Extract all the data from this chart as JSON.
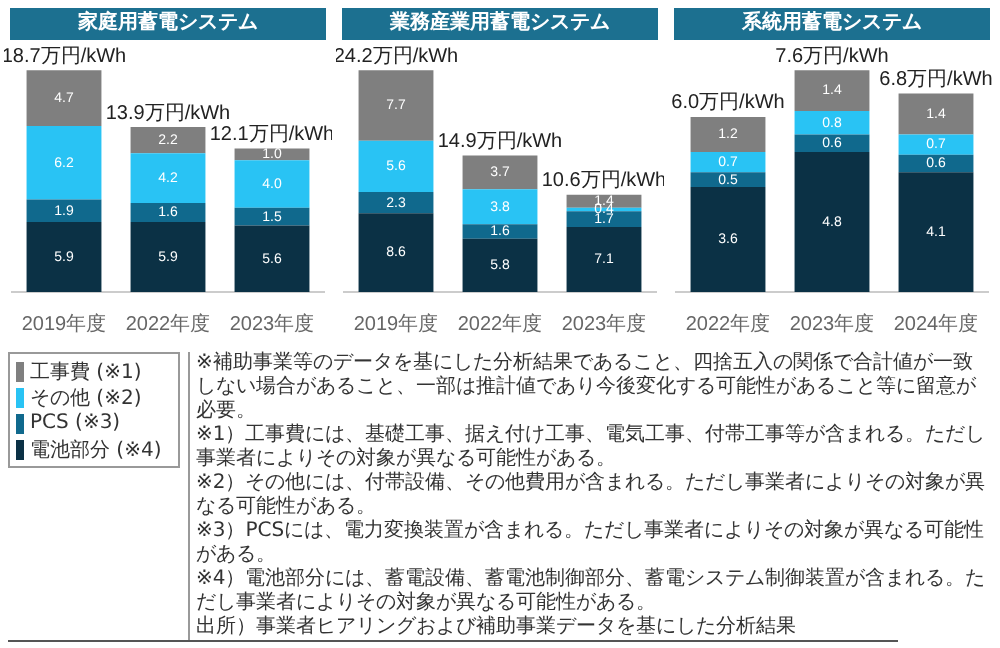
{
  "chart_data": [
    {
      "type": "bar",
      "title": "家庭用蓄電システム",
      "categories": [
        "2019年度",
        "2022年度",
        "2023年度"
      ],
      "stacked": true,
      "data_labels": true,
      "tick_labels": "x",
      "legend": "bottom left",
      "totals": [
        "18.7万円/kWh",
        "13.9万円/kWh",
        "12.1万円/kWh"
      ],
      "series": [
        {
          "name": "電池部分 (※4)",
          "color": "#0b3145",
          "values": [
            5.9,
            5.9,
            5.6
          ]
        },
        {
          "name": "PCS (※3)",
          "color": "#10698d",
          "values": [
            1.9,
            1.6,
            1.5
          ]
        },
        {
          "name": "その他 (※2)",
          "color": "#29c3f4",
          "values": [
            6.2,
            4.2,
            4.0
          ],
          "value_labels": [
            "6.2",
            "4.2",
            "4.0"
          ]
        },
        {
          "name": "工事費 (※1)",
          "color": "#7f7f7f",
          "values": [
            4.7,
            2.2,
            1.0
          ],
          "value_labels": [
            "4.7",
            "2.2",
            "1.0"
          ]
        }
      ],
      "annotations": [
        "※補助事業等のデータを基にした分析結果であること、四捨五入の関係で合計値が一致しない場合があること、一部は推計値であり今後変化する可能性があること等に留意が必要。",
        "※1）工事費には、基礎工事、据え付け工事、電気工事、付帯工事等が含まれる。ただし事業者によりその対象が異なる可能性がある。",
        "※2）その他には、付帯設備、その他費用が含まれる。ただし事業者によりその対象が異なる可能性がある。",
        "※3）PCSには、電力変換装置が含まれる。ただし事業者によりその対象が異なる可能性がある。",
        "※4）電池部分には、蓄電設備、蓄電池制御部分、蓄電システム制御装置が含まれる。ただし事業者によりその対象が異なる可能性がある。",
        "出所）事業者ヒアリングおよび補助事業データを基にした分析結果"
      ]
    },
    {
      "type": "bar",
      "title": "業務産業用蓄電システム",
      "categories": [
        "2019年度",
        "2022年度",
        "2023年度"
      ],
      "stacked": true,
      "data_labels": true,
      "tick_labels": "x",
      "totals": [
        "24.2万円/kWh",
        "14.9万円/kWh",
        "10.6万円/kWh"
      ],
      "series": [
        {
          "color": "#0b3145",
          "values": [
            8.6,
            5.8,
            7.1
          ]
        },
        {
          "color": "#10698d",
          "values": [
            2.3,
            1.6,
            1.7
          ]
        },
        {
          "color": "#29c3f4",
          "values": [
            5.6,
            3.8,
            0.4
          ]
        },
        {
          "color": "#7f7f7f",
          "values": [
            7.7,
            3.7,
            1.4
          ]
        }
      ]
    },
    {
      "type": "bar",
      "title": "系統用蓄電システム",
      "categories": [
        "2022年度",
        "2023年度",
        "2024年度"
      ],
      "stacked": true,
      "data_labels": true,
      "tick_labels": "x",
      "totals": [
        "6.0万円/kWh",
        "7.6万円/kWh",
        "6.8万円/kWh"
      ],
      "series": [
        {
          "color": "#0b3145",
          "values": [
            3.6,
            4.8,
            4.1
          ]
        },
        {
          "color": "#10698d",
          "values": [
            0.5,
            0.6,
            0.6
          ]
        },
        {
          "color": "#29c3f4",
          "values": [
            0.7,
            0.8,
            0.7
          ]
        },
        {
          "color": "#7f7f7f",
          "values": [
            1.2,
            1.4,
            1.4
          ]
        }
      ]
    }
  ]
}
